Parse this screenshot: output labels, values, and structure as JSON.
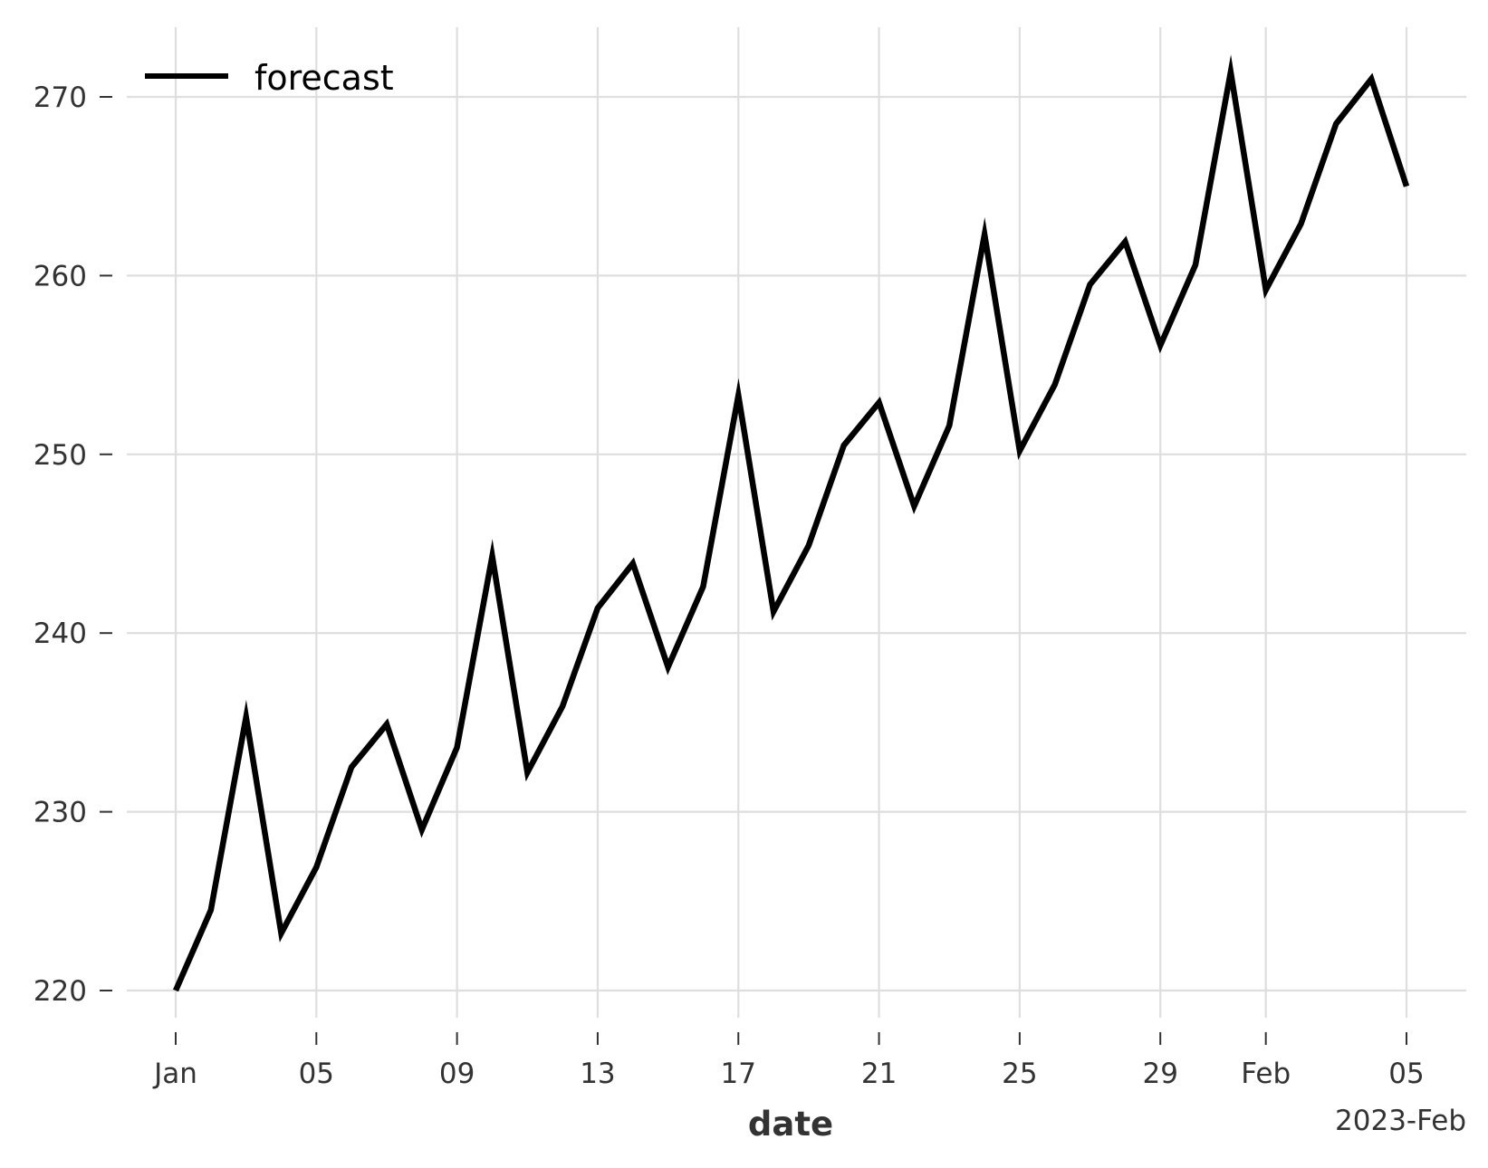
{
  "chart_data": {
    "type": "line",
    "xlabel": "date",
    "ylabel": "",
    "x_offset_label": "2023-Feb",
    "ylim": [
      218,
      274
    ],
    "y_ticks": [
      220,
      230,
      240,
      250,
      260,
      270
    ],
    "x_ticks": [
      {
        "date": "2023-01-01",
        "label": "Jan"
      },
      {
        "date": "2023-01-05",
        "label": "05"
      },
      {
        "date": "2023-01-09",
        "label": "09"
      },
      {
        "date": "2023-01-13",
        "label": "13"
      },
      {
        "date": "2023-01-17",
        "label": "17"
      },
      {
        "date": "2023-01-21",
        "label": "21"
      },
      {
        "date": "2023-01-25",
        "label": "25"
      },
      {
        "date": "2023-01-29",
        "label": "29"
      },
      {
        "date": "2023-02-01",
        "label": "Feb"
      },
      {
        "date": "2023-02-05",
        "label": "05"
      }
    ],
    "grid": true,
    "legend_position": "top-left",
    "series": [
      {
        "name": "forecast",
        "color": "#000000",
        "x": [
          "2023-01-01",
          "2023-01-02",
          "2023-01-03",
          "2023-01-04",
          "2023-01-05",
          "2023-01-06",
          "2023-01-07",
          "2023-01-08",
          "2023-01-09",
          "2023-01-10",
          "2023-01-11",
          "2023-01-12",
          "2023-01-13",
          "2023-01-14",
          "2023-01-15",
          "2023-01-16",
          "2023-01-17",
          "2023-01-18",
          "2023-01-19",
          "2023-01-20",
          "2023-01-21",
          "2023-01-22",
          "2023-01-23",
          "2023-01-24",
          "2023-01-25",
          "2023-01-26",
          "2023-01-27",
          "2023-01-28",
          "2023-01-29",
          "2023-01-30",
          "2023-01-31",
          "2023-02-01",
          "2023-02-02",
          "2023-02-03",
          "2023-02-04",
          "2023-02-05"
        ],
        "values": [
          220.0,
          224.5,
          235.3,
          223.2,
          226.9,
          232.5,
          234.9,
          229.0,
          233.6,
          244.3,
          232.2,
          235.9,
          241.4,
          243.9,
          238.1,
          242.6,
          253.3,
          241.2,
          244.9,
          250.5,
          252.9,
          247.1,
          251.6,
          262.3,
          250.2,
          253.9,
          259.5,
          261.9,
          256.1,
          260.6,
          271.4,
          259.2,
          262.9,
          268.5,
          271.0,
          265.0
        ]
      }
    ]
  }
}
